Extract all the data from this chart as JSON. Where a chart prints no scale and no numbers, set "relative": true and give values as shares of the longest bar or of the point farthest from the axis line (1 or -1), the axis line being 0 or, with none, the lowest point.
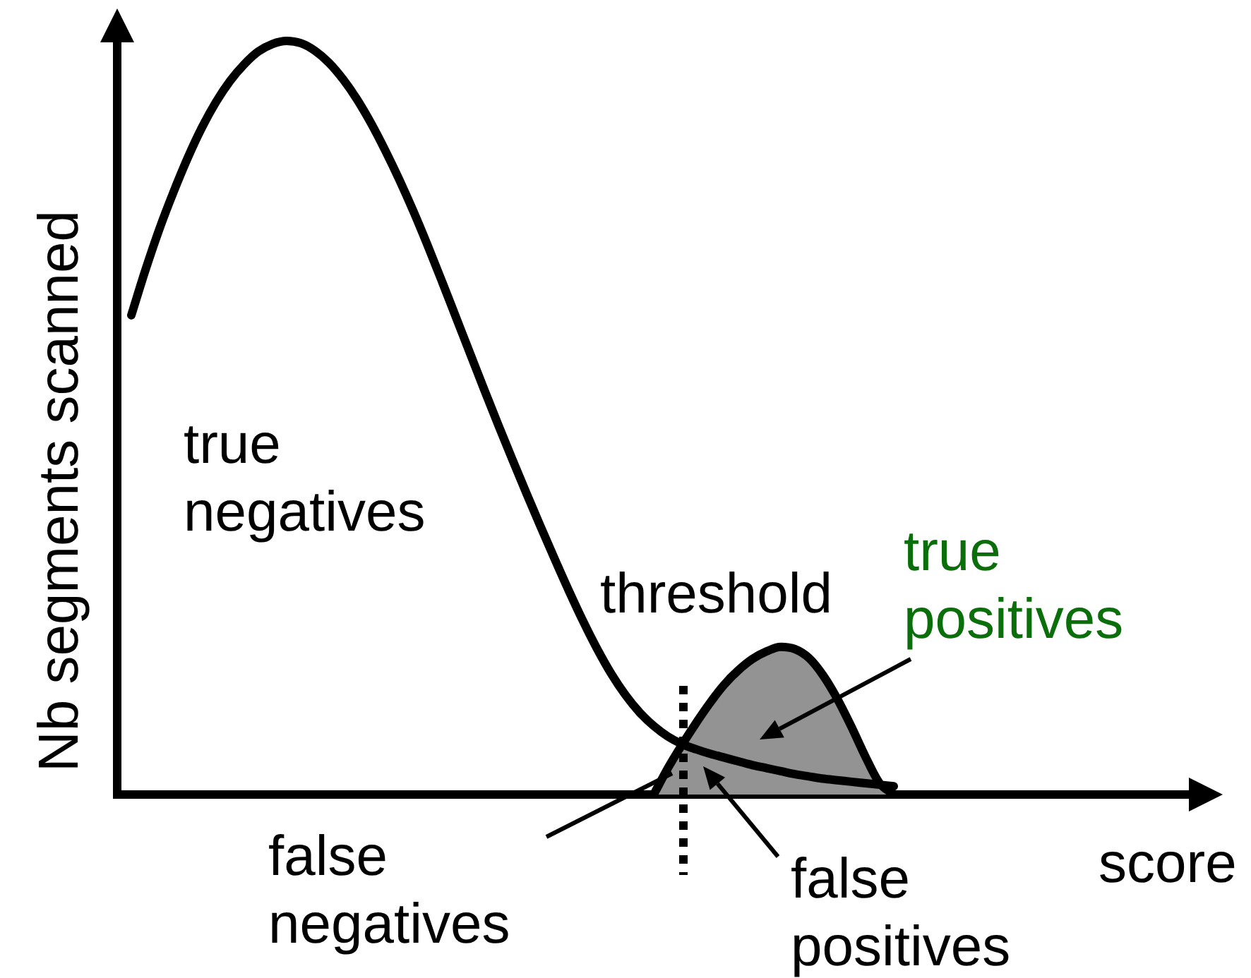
{
  "chart_data": {
    "type": "line",
    "xlabel": "score",
    "ylabel": "Nb segments scanned",
    "relative": true,
    "tick_labels": false,
    "categories": [
      null,
      null,
      null,
      null,
      null,
      null,
      null,
      null,
      null,
      null,
      null,
      null,
      null,
      null,
      null,
      null,
      null,
      null,
      null,
      null,
      null,
      null,
      null,
      null,
      null,
      null,
      null,
      null,
      null,
      null,
      null,
      null,
      null,
      null,
      null,
      null,
      null,
      null,
      null,
      null,
      null,
      null,
      null,
      null,
      null,
      null,
      null,
      null,
      null,
      null,
      null,
      null,
      null,
      null,
      null,
      null,
      null,
      null,
      null,
      null,
      null,
      null,
      null,
      null,
      null,
      null,
      null,
      null,
      null,
      null,
      null,
      null,
      null,
      null,
      null,
      null,
      null
    ],
    "series": [
      {
        "color": "#000000",
        "values": [
          null,
          0.636,
          0.696,
          0.751,
          0.8,
          0.845,
          0.885,
          0.919,
          0.947,
          0.969,
          0.986,
          0.996,
          1,
          0.997,
          0.987,
          0.971,
          0.949,
          0.922,
          0.89,
          0.854,
          0.815,
          0.773,
          0.728,
          0.681,
          0.633,
          0.585,
          0.537,
          0.49,
          0.444,
          0.399,
          0.355,
          0.312,
          0.27,
          0.23,
          0.193,
          0.16,
          0.132,
          0.109,
          0.091,
          0.077,
          0.067,
          0.06,
          0.054,
          0.049,
          0.044,
          0.039,
          0.035,
          0.031,
          0.027,
          0.024,
          0.021,
          0.019,
          0.017,
          0.015,
          0.013,
          0.011,
          null,
          null,
          null,
          null,
          null,
          null,
          null,
          null,
          null,
          null,
          null,
          null,
          null,
          null,
          null,
          null,
          null,
          null,
          null,
          null,
          null
        ]
      },
      {
        "type": "area",
        "color": "#939393",
        "values": [
          null,
          null,
          null,
          null,
          null,
          null,
          null,
          null,
          null,
          null,
          null,
          null,
          null,
          null,
          null,
          null,
          null,
          null,
          null,
          null,
          null,
          null,
          null,
          null,
          null,
          null,
          null,
          null,
          null,
          null,
          null,
          null,
          null,
          null,
          null,
          null,
          null,
          null,
          0,
          0.035,
          0.066,
          0.095,
          0.122,
          0.146,
          0.165,
          0.18,
          0.19,
          0.196,
          0.193,
          0.181,
          0.158,
          0.127,
          0.09,
          0.05,
          0.015,
          0,
          null,
          null,
          null,
          null,
          null,
          null,
          null,
          null,
          null,
          null,
          null,
          null,
          null,
          null,
          null,
          null,
          null,
          null,
          null,
          null,
          null
        ]
      }
    ],
    "annotations": [
      "true negatives",
      "true positives",
      "false negatives",
      "false positives",
      "threshold"
    ]
  }
}
